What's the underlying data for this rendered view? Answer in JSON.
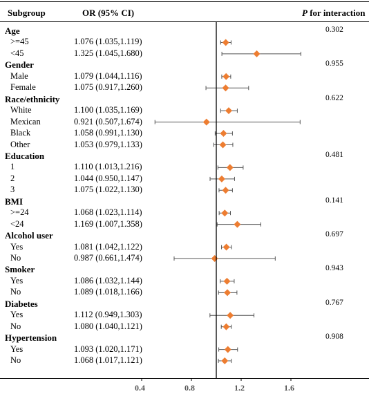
{
  "headers": {
    "subgroup": "Subgroup",
    "or": "OR (95% CI)",
    "p_italic": "P",
    "p_rest": " for interaction"
  },
  "chart_data": {
    "type": "forest",
    "reference_line": 1.0,
    "xlim": [
      0.22,
      1.75
    ],
    "x_ticks": [
      "0.4",
      "0.8",
      "1.2",
      "1.6"
    ],
    "marker_color": "#ED7D31",
    "groups": [
      {
        "name": "Age",
        "p": "0.302",
        "rows": [
          {
            "label": ">=45",
            "text": "1.076 (1.035,1.119)",
            "or": 1.076,
            "lo": 1.035,
            "hi": 1.119
          },
          {
            "label": "<45",
            "text": "1.325 (1.045,1.680)",
            "or": 1.325,
            "lo": 1.045,
            "hi": 1.68
          }
        ]
      },
      {
        "name": "Gender",
        "p": "0.955",
        "rows": [
          {
            "label": "Male",
            "text": "1.079 (1.044,1.116)",
            "or": 1.079,
            "lo": 1.044,
            "hi": 1.116
          },
          {
            "label": "Female",
            "text": "1.075 (0.917,1.260)",
            "or": 1.075,
            "lo": 0.917,
            "hi": 1.26
          }
        ]
      },
      {
        "name": "Race/ethnicity",
        "p": "0.622",
        "rows": [
          {
            "label": "White",
            "text": "1.100 (1.035,1.169)",
            "or": 1.1,
            "lo": 1.035,
            "hi": 1.169
          },
          {
            "label": "Mexican",
            "text": "0.921 (0.507,1.674)",
            "or": 0.921,
            "lo": 0.507,
            "hi": 1.674
          },
          {
            "label": "Black",
            "text": "1.058 (0.991,1.130)",
            "or": 1.058,
            "lo": 0.991,
            "hi": 1.13
          },
          {
            "label": "Other",
            "text": "1.053 (0.979,1.133)",
            "or": 1.053,
            "lo": 0.979,
            "hi": 1.133
          }
        ]
      },
      {
        "name": "Education",
        "p": "0.481",
        "rows": [
          {
            "label": "1",
            "text": "1.110 (1.013,1.216)",
            "or": 1.11,
            "lo": 1.013,
            "hi": 1.216
          },
          {
            "label": "2",
            "text": "1.044 (0.950,1.147)",
            "or": 1.044,
            "lo": 0.95,
            "hi": 1.147
          },
          {
            "label": "3",
            "text": "1.075 (1.022,1.130)",
            "or": 1.075,
            "lo": 1.022,
            "hi": 1.13
          }
        ]
      },
      {
        "name": "BMI",
        "p": "0.141",
        "rows": [
          {
            "label": ">=24",
            "text": "1.068 (1.023,1.114)",
            "or": 1.068,
            "lo": 1.023,
            "hi": 1.114
          },
          {
            "label": "<24",
            "text": "1.169 (1.007,1.358)",
            "or": 1.169,
            "lo": 1.007,
            "hi": 1.358
          }
        ]
      },
      {
        "name": "Alcohol user",
        "p": "0.697",
        "rows": [
          {
            "label": "Yes",
            "text": "1.081 (1.042,1.122)",
            "or": 1.081,
            "lo": 1.042,
            "hi": 1.122
          },
          {
            "label": "No",
            "text": "0.987 (0.661,1.474)",
            "or": 0.987,
            "lo": 0.661,
            "hi": 1.474
          }
        ]
      },
      {
        "name": "Smoker",
        "p": "0.943",
        "rows": [
          {
            "label": "Yes",
            "text": "1.086 (1.032,1.144)",
            "or": 1.086,
            "lo": 1.032,
            "hi": 1.144
          },
          {
            "label": "No",
            "text": "1.089 (1.018,1.166)",
            "or": 1.089,
            "lo": 1.018,
            "hi": 1.166
          }
        ]
      },
      {
        "name": "Diabetes",
        "p": "0.767",
        "rows": [
          {
            "label": "Yes",
            "text": "1.112 (0.949,1.303)",
            "or": 1.112,
            "lo": 0.949,
            "hi": 1.303
          },
          {
            "label": "No",
            "text": "1.080 (1.040,1.121)",
            "or": 1.08,
            "lo": 1.04,
            "hi": 1.121
          }
        ]
      },
      {
        "name": "Hypertension",
        "p": "0.908",
        "rows": [
          {
            "label": "Yes",
            "text": "1.093 (1.020,1.171)",
            "or": 1.093,
            "lo": 1.02,
            "hi": 1.171
          },
          {
            "label": "No",
            "text": "1.068 (1.017,1.121)",
            "or": 1.068,
            "lo": 1.017,
            "hi": 1.121
          }
        ]
      }
    ]
  }
}
